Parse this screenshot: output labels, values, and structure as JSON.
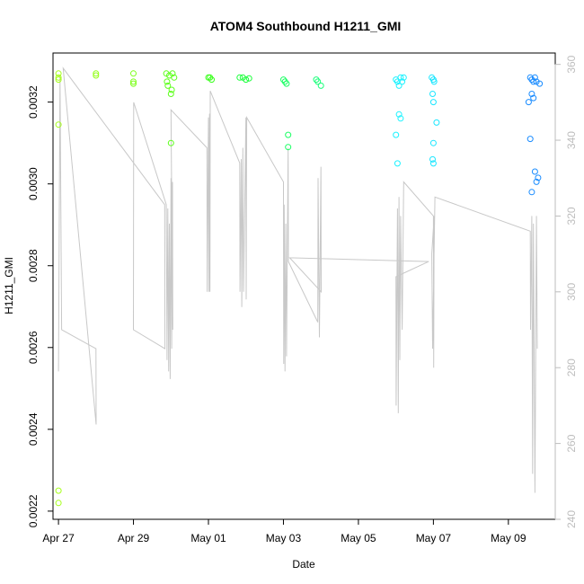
{
  "chart_data": {
    "type": "scatter",
    "title": "ATOM4 Southbound H1211_GMI",
    "xlabel": "Date",
    "ylabel": "H1211_GMI",
    "x_axis": {
      "type": "date",
      "min": "2020-04-26T20:30",
      "max": "2020-05-10T06:00",
      "tick_labels": [
        "Apr 27",
        "Apr 29",
        "May 01",
        "May 03",
        "May 05",
        "May 07",
        "May 09"
      ],
      "tick_dates": [
        "2020-04-27",
        "2020-04-29",
        "2020-05-01",
        "2020-05-03",
        "2020-05-05",
        "2020-05-07",
        "2020-05-09"
      ]
    },
    "y_axis_left": {
      "min": 0.00218,
      "max": 0.00332,
      "tick_labels": [
        "0.0022",
        "0.0024",
        "0.0026",
        "0.0028",
        "0.0030",
        "0.0032"
      ],
      "tick_values": [
        0.0022,
        0.0024,
        0.0026,
        0.0028,
        0.003,
        0.0032
      ]
    },
    "y_axis_right": {
      "min": 240,
      "max": 363,
      "tick_labels": [
        "240",
        "260",
        "280",
        "300",
        "320",
        "340",
        "360"
      ],
      "tick_values": [
        240,
        260,
        280,
        300,
        320,
        340,
        360
      ],
      "color": "#bdbdbd"
    },
    "grid": false,
    "series": [
      {
        "kind": "points",
        "color_scale": "hue by date (yellow-green to blue)",
        "points": [
          {
            "x": "2020-04-27T00:00",
            "y": 0.00326,
            "color": "#a6ff1a"
          },
          {
            "x": "2020-04-27T00:00",
            "y": 0.00327,
            "color": "#a6ff1a"
          },
          {
            "x": "2020-04-27T00:00",
            "y": 0.003255,
            "color": "#a6ff1a"
          },
          {
            "x": "2020-04-27T00:00",
            "y": 0.003145,
            "color": "#a6ff1a"
          },
          {
            "x": "2020-04-27T00:00",
            "y": 0.00225,
            "color": "#a6ff1a"
          },
          {
            "x": "2020-04-27T00:00",
            "y": 0.00222,
            "color": "#a6ff1a"
          },
          {
            "x": "2020-04-28T00:00",
            "y": 0.00327,
            "color": "#95ff1a"
          },
          {
            "x": "2020-04-28T00:00",
            "y": 0.003265,
            "color": "#95ff1a"
          },
          {
            "x": "2020-04-29T00:00",
            "y": 0.00327,
            "color": "#7cff1a"
          },
          {
            "x": "2020-04-29T00:00",
            "y": 0.00325,
            "color": "#7cff1a"
          },
          {
            "x": "2020-04-29T00:00",
            "y": 0.003245,
            "color": "#7cff1a"
          },
          {
            "x": "2020-04-29T21:00",
            "y": 0.00327,
            "color": "#5cff1a"
          },
          {
            "x": "2020-04-29T21:30",
            "y": 0.00325,
            "color": "#5cff1a"
          },
          {
            "x": "2020-04-29T22:00",
            "y": 0.00324,
            "color": "#5cff1a"
          },
          {
            "x": "2020-04-29T23:00",
            "y": 0.003265,
            "color": "#5cff1a"
          },
          {
            "x": "2020-04-30T00:00",
            "y": 0.00322,
            "color": "#5cff1a"
          },
          {
            "x": "2020-04-30T00:30",
            "y": 0.00323,
            "color": "#5cff1a"
          },
          {
            "x": "2020-04-30T01:00",
            "y": 0.00327,
            "color": "#5cff1a"
          },
          {
            "x": "2020-04-30T02:00",
            "y": 0.00326,
            "color": "#5cff1a"
          },
          {
            "x": "2020-04-30T00:00",
            "y": 0.0031,
            "color": "#5cff1a"
          },
          {
            "x": "2020-05-01T00:00",
            "y": 0.00326,
            "color": "#38ff1a"
          },
          {
            "x": "2020-05-01T01:00",
            "y": 0.00326,
            "color": "#38ff1a"
          },
          {
            "x": "2020-05-01T02:00",
            "y": 0.003255,
            "color": "#38ff1a"
          },
          {
            "x": "2020-05-01T20:00",
            "y": 0.00326,
            "color": "#1aff3a"
          },
          {
            "x": "2020-05-01T22:00",
            "y": 0.00326,
            "color": "#1aff3a"
          },
          {
            "x": "2020-05-02T00:00",
            "y": 0.003255,
            "color": "#1aff3a"
          },
          {
            "x": "2020-05-02T02:00",
            "y": 0.003258,
            "color": "#1aff3a"
          },
          {
            "x": "2020-05-03T00:00",
            "y": 0.003255,
            "color": "#1aff63"
          },
          {
            "x": "2020-05-03T01:00",
            "y": 0.00325,
            "color": "#1aff63"
          },
          {
            "x": "2020-05-03T02:00",
            "y": 0.003245,
            "color": "#1aff63"
          },
          {
            "x": "2020-05-03T03:00",
            "y": 0.00312,
            "color": "#1aff63"
          },
          {
            "x": "2020-05-03T03:00",
            "y": 0.00309,
            "color": "#1aff63"
          },
          {
            "x": "2020-05-03T21:00",
            "y": 0.003255,
            "color": "#1aff7a"
          },
          {
            "x": "2020-05-03T22:00",
            "y": 0.00325,
            "color": "#1aff7a"
          },
          {
            "x": "2020-05-04T00:00",
            "y": 0.00324,
            "color": "#1aff7a"
          },
          {
            "x": "2020-05-06T00:00",
            "y": 0.003255,
            "color": "#1af2ff"
          },
          {
            "x": "2020-05-06T01:00",
            "y": 0.00325,
            "color": "#1af2ff"
          },
          {
            "x": "2020-05-06T02:00",
            "y": 0.00324,
            "color": "#1af2ff"
          },
          {
            "x": "2020-05-06T03:00",
            "y": 0.00326,
            "color": "#1af2ff"
          },
          {
            "x": "2020-05-06T04:00",
            "y": 0.00325,
            "color": "#1af2ff"
          },
          {
            "x": "2020-05-06T05:00",
            "y": 0.00326,
            "color": "#1af2ff"
          },
          {
            "x": "2020-05-06T02:00",
            "y": 0.00317,
            "color": "#1af2ff"
          },
          {
            "x": "2020-05-06T03:00",
            "y": 0.00316,
            "color": "#1af2ff"
          },
          {
            "x": "2020-05-06T00:00",
            "y": 0.00312,
            "color": "#1af2ff"
          },
          {
            "x": "2020-05-06T01:00",
            "y": 0.00305,
            "color": "#1af2ff"
          },
          {
            "x": "2020-05-06T23:00",
            "y": 0.00326,
            "color": "#1ae6ff"
          },
          {
            "x": "2020-05-07T00:00",
            "y": 0.003255,
            "color": "#1ae6ff"
          },
          {
            "x": "2020-05-07T00:30",
            "y": 0.00325,
            "color": "#1ae6ff"
          },
          {
            "x": "2020-05-06T23:30",
            "y": 0.00322,
            "color": "#1ae6ff"
          },
          {
            "x": "2020-05-07T00:00",
            "y": 0.0032,
            "color": "#1ae6ff"
          },
          {
            "x": "2020-05-07T02:00",
            "y": 0.00315,
            "color": "#1ae6ff"
          },
          {
            "x": "2020-05-07T00:00",
            "y": 0.0031,
            "color": "#1ae6ff"
          },
          {
            "x": "2020-05-06T23:30",
            "y": 0.00306,
            "color": "#1ae6ff"
          },
          {
            "x": "2020-05-07T00:00",
            "y": 0.00305,
            "color": "#1ae6ff"
          },
          {
            "x": "2020-05-09T14:00",
            "y": 0.00326,
            "color": "#1a8cff"
          },
          {
            "x": "2020-05-09T15:00",
            "y": 0.003255,
            "color": "#1a8cff"
          },
          {
            "x": "2020-05-09T16:00",
            "y": 0.00325,
            "color": "#1a8cff"
          },
          {
            "x": "2020-05-09T17:00",
            "y": 0.00326,
            "color": "#1a8cff"
          },
          {
            "x": "2020-05-09T18:00",
            "y": 0.00325,
            "color": "#1a8cff"
          },
          {
            "x": "2020-05-09T20:00",
            "y": 0.003245,
            "color": "#1a8cff"
          },
          {
            "x": "2020-05-09T15:00",
            "y": 0.00322,
            "color": "#1a8cff"
          },
          {
            "x": "2020-05-09T16:00",
            "y": 0.00321,
            "color": "#1a8cff"
          },
          {
            "x": "2020-05-09T13:00",
            "y": 0.0032,
            "color": "#1a8cff"
          },
          {
            "x": "2020-05-09T14:00",
            "y": 0.00311,
            "color": "#1a8cff"
          },
          {
            "x": "2020-05-09T17:00",
            "y": 0.00303,
            "color": "#1a8cff"
          },
          {
            "x": "2020-05-09T19:00",
            "y": 0.003015,
            "color": "#1a8cff"
          },
          {
            "x": "2020-05-09T18:00",
            "y": 0.003005,
            "color": "#1a8cff"
          },
          {
            "x": "2020-05-09T15:00",
            "y": 0.00298,
            "color": "#1a8cff"
          }
        ]
      },
      {
        "kind": "line",
        "color": "#c8c8c8",
        "axis": "right",
        "points": [
          [
            "2020-04-27T00:00",
            279
          ],
          [
            "2020-04-27T01:00",
            357
          ],
          [
            "2020-04-27T02:00",
            290
          ],
          [
            "2020-04-28T00:00",
            285
          ],
          [
            "2020-04-28T00:05",
            265
          ],
          [
            "2020-04-27T03:00",
            359
          ],
          [
            "2020-04-29T20:00",
            323
          ],
          [
            "2020-04-29T20:10",
            285
          ],
          [
            "2020-04-29T00:00",
            290
          ],
          [
            "2020-04-29T00:10",
            350
          ],
          [
            "2020-04-29T21:00",
            323
          ],
          [
            "2020-04-29T21:30",
            282
          ],
          [
            "2020-04-29T22:00",
            322
          ],
          [
            "2020-04-29T22:30",
            279
          ],
          [
            "2020-04-29T23:00",
            318
          ],
          [
            "2020-04-29T23:30",
            277
          ],
          [
            "2020-04-30T00:00",
            330
          ],
          [
            "2020-04-30T00:30",
            285
          ],
          [
            "2020-04-30T01:00",
            329
          ],
          [
            "2020-04-30T01:10",
            290
          ],
          [
            "2020-04-30T00:00",
            348
          ],
          [
            "2020-04-30T23:00",
            338
          ],
          [
            "2020-04-30T23:10",
            300
          ],
          [
            "2020-05-01T00:00",
            346
          ],
          [
            "2020-05-01T00:20",
            300
          ],
          [
            "2020-05-01T00:40",
            347
          ],
          [
            "2020-05-01T01:00",
            300
          ],
          [
            "2020-05-01T01:10",
            353
          ],
          [
            "2020-05-01T20:00",
            334
          ],
          [
            "2020-05-01T20:10",
            300
          ],
          [
            "2020-05-01T21:00",
            335
          ],
          [
            "2020-05-01T21:20",
            296
          ],
          [
            "2020-05-01T22:00",
            338
          ],
          [
            "2020-05-01T22:30",
            300
          ],
          [
            "2020-05-02T00:00",
            346
          ],
          [
            "2020-05-02T00:10",
            298
          ],
          [
            "2020-05-02T00:30",
            346
          ],
          [
            "2020-05-03T00:00",
            329
          ],
          [
            "2020-05-03T00:10",
            281
          ],
          [
            "2020-05-03T00:30",
            323
          ],
          [
            "2020-05-03T01:00",
            279
          ],
          [
            "2020-05-03T01:30",
            318
          ],
          [
            "2020-05-03T02:00",
            283
          ],
          [
            "2020-05-03T03:00",
            338
          ],
          [
            "2020-05-03T03:10",
            308
          ],
          [
            "2020-05-03T22:00",
            292
          ],
          [
            "2020-05-03T22:10",
            330
          ],
          [
            "2020-05-03T23:00",
            288
          ],
          [
            "2020-05-04T00:00",
            333
          ],
          [
            "2020-05-04T00:10",
            300
          ],
          [
            "2020-05-03T04:00",
            309
          ],
          [
            "2020-05-06T21:00",
            308
          ],
          [
            "2020-05-06T00:00",
            304
          ],
          [
            "2020-05-06T00:10",
            270
          ],
          [
            "2020-05-06T01:00",
            322
          ],
          [
            "2020-05-06T01:30",
            268
          ],
          [
            "2020-05-06T02:00",
            325
          ],
          [
            "2020-05-06T02:30",
            282
          ],
          [
            "2020-05-06T03:00",
            320
          ],
          [
            "2020-05-06T04:00",
            290
          ],
          [
            "2020-05-06T05:00",
            329
          ],
          [
            "2020-05-07T00:00",
            320
          ],
          [
            "2020-05-07T00:10",
            280
          ],
          [
            "2020-05-07T00:30",
            320
          ],
          [
            "2020-05-06T23:00",
            310
          ],
          [
            "2020-05-06T23:30",
            285
          ],
          [
            "2020-05-07T01:00",
            325
          ],
          [
            "2020-05-09T14:00",
            316
          ],
          [
            "2020-05-09T14:10",
            290
          ],
          [
            "2020-05-09T15:00",
            320
          ],
          [
            "2020-05-09T15:30",
            252
          ],
          [
            "2020-05-09T16:00",
            318
          ],
          [
            "2020-05-09T17:00",
            247
          ],
          [
            "2020-05-09T18:00",
            320
          ],
          [
            "2020-05-09T18:30",
            285
          ]
        ]
      }
    ]
  }
}
